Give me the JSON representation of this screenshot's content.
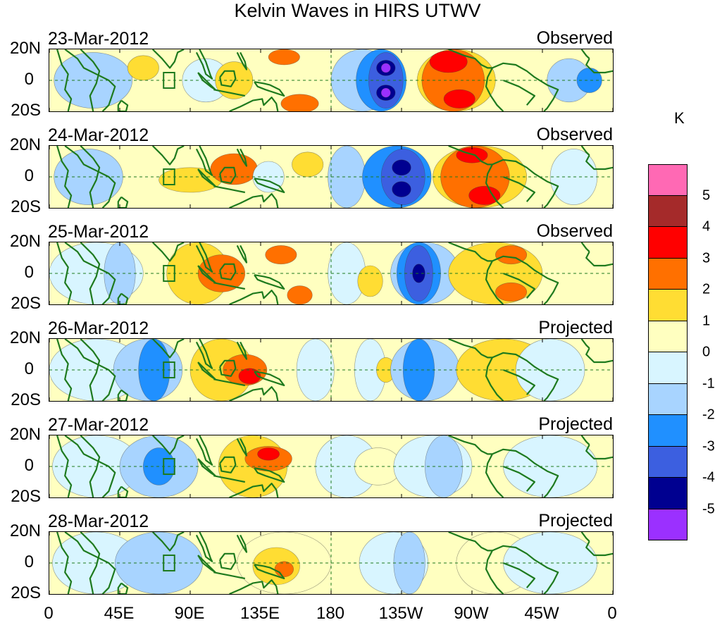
{
  "title": "Kelvin Waves in HIRS UTWV",
  "latitude_labels": [
    "20N",
    "0",
    "20S"
  ],
  "longitude_labels": [
    "0",
    "45E",
    "90E",
    "135E",
    "180",
    "135W",
    "90W",
    "45W",
    "0"
  ],
  "panels": [
    {
      "date": "23-Mar-2012",
      "type": "Observed"
    },
    {
      "date": "24-Mar-2012",
      "type": "Observed"
    },
    {
      "date": "25-Mar-2012",
      "type": "Observed"
    },
    {
      "date": "26-Mar-2012",
      "type": "Projected"
    },
    {
      "date": "27-Mar-2012",
      "type": "Projected"
    },
    {
      "date": "28-Mar-2012",
      "type": "Projected"
    }
  ],
  "colorbar": {
    "unit": "K",
    "labels": [
      "5",
      "4",
      "3",
      "2",
      "1",
      "0",
      "-1",
      "-2",
      "-3",
      "-4",
      "-5"
    ],
    "colors": [
      "#ff69b4",
      "#a52a2a",
      "#ff0000",
      "#ff7000",
      "#ffdd33",
      "#ffffc0",
      "#d8f5ff",
      "#a8d4ff",
      "#2090ff",
      "#3c5fe0",
      "#000090",
      "#9b30ff"
    ]
  },
  "colors": {
    "land_outline": "#1e7a1e",
    "guide_lines": "#1e7a1e"
  }
}
